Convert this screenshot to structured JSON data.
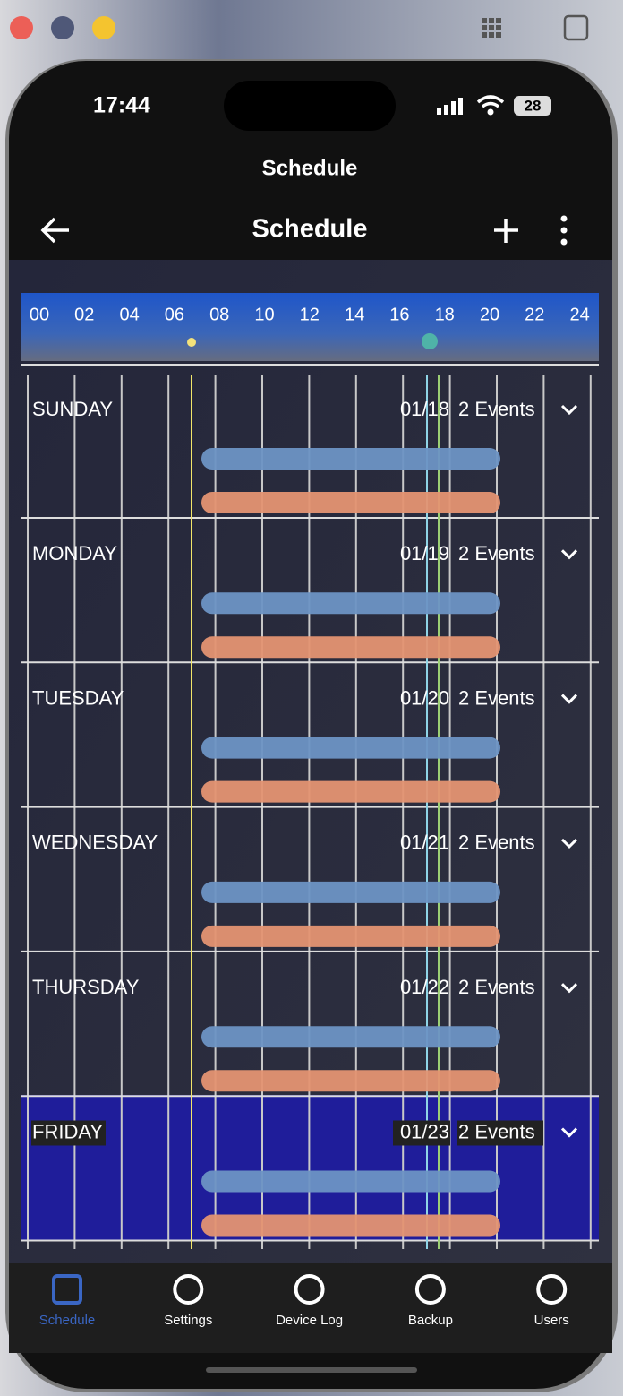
{
  "status_bar": {
    "time": "17:44",
    "battery": "28"
  },
  "header": {
    "page_title": "Schedule",
    "app_title": "Schedule"
  },
  "timeline": {
    "hours": [
      "00",
      "02",
      "04",
      "06",
      "08",
      "10",
      "12",
      "14",
      "16",
      "18",
      "20",
      "22",
      "24"
    ]
  },
  "days": [
    {
      "name": "SUNDAY",
      "date": "01/18",
      "events": "2 Events"
    },
    {
      "name": "MONDAY",
      "date": "01/19",
      "events": "2 Events"
    },
    {
      "name": "TUESDAY",
      "date": "01/20",
      "events": "2 Events"
    },
    {
      "name": "WEDNESDAY",
      "date": "01/21",
      "events": "2 Events"
    },
    {
      "name": "THURSDAY",
      "date": "01/22",
      "events": "2 Events"
    },
    {
      "name": "FRIDAY",
      "date": "01/23",
      "events": "2 Events"
    }
  ],
  "nav": [
    {
      "label": "Schedule"
    },
    {
      "label": "Settings"
    },
    {
      "label": "Device Log"
    },
    {
      "label": "Backup"
    },
    {
      "label": "Users"
    }
  ]
}
